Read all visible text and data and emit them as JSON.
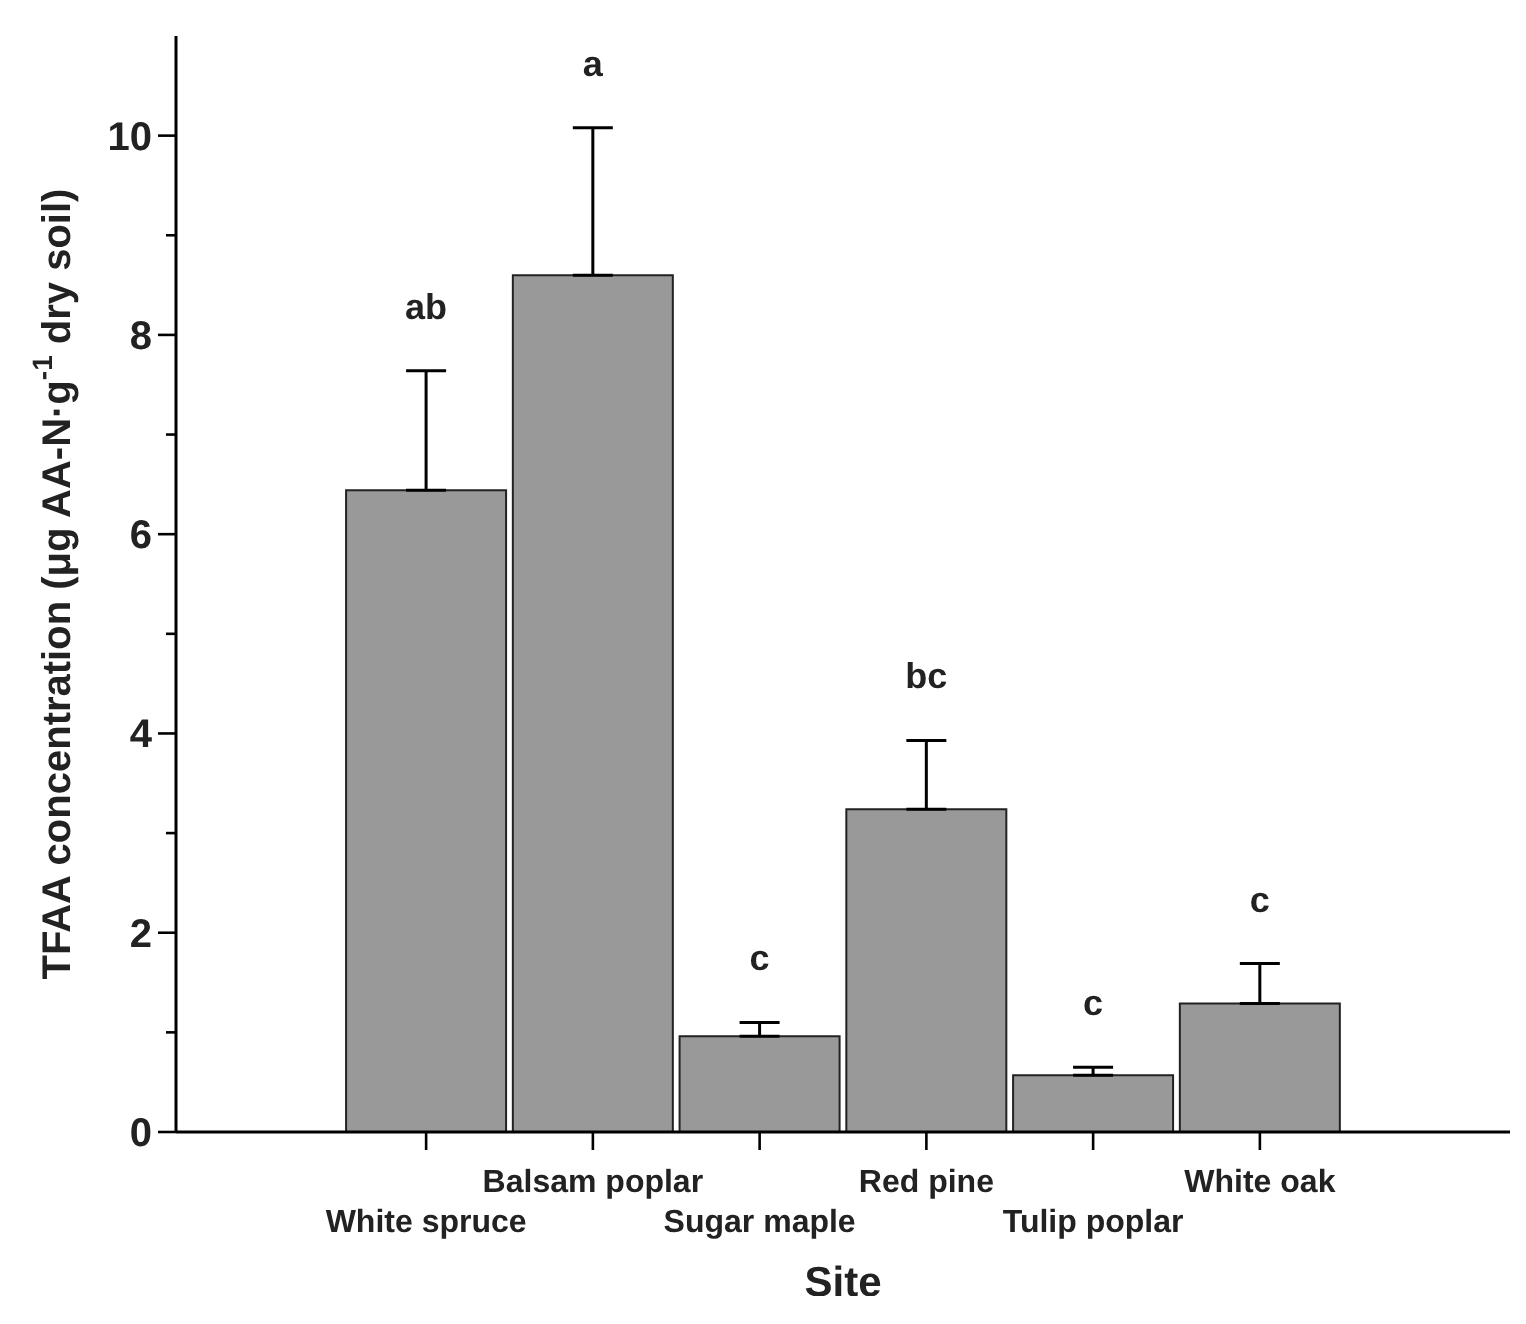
{
  "chart_data": {
    "type": "bar",
    "xlabel": "Site",
    "ylabel": "TFAA concentration (μg AA-N·g$^{-1}$ dry soil)",
    "categories": [
      null,
      "White spruce",
      "Balsam poplar",
      "Sugar maple",
      "Red pine",
      "Tulip poplar",
      "White oak",
      null
    ],
    "values": [
      null,
      6.44,
      8.6,
      0.96,
      3.24,
      0.57,
      1.29,
      null
    ],
    "errors": [
      null,
      [
        6.44,
        7.64
      ],
      [
        8.6,
        10.08
      ],
      [
        0.96,
        1.1
      ],
      [
        3.24,
        3.93
      ],
      [
        0.57,
        0.65
      ],
      [
        1.29,
        1.69
      ],
      null
    ],
    "color": "#999999",
    "ylim": [
      0,
      11
    ],
    "yticks": [
      0,
      {
        "value": 1,
        "label": null
      },
      2,
      {
        "value": 3,
        "label": null
      },
      4,
      {
        "value": 5,
        "label": null
      },
      6,
      {
        "value": 7,
        "label": null
      },
      8,
      {
        "value": 9,
        "label": null
      },
      10
    ],
    "annotations": [
      "ab",
      "a",
      "c",
      "bc",
      "c",
      "c"
    ],
    "grid": false,
    "legend": false
  }
}
